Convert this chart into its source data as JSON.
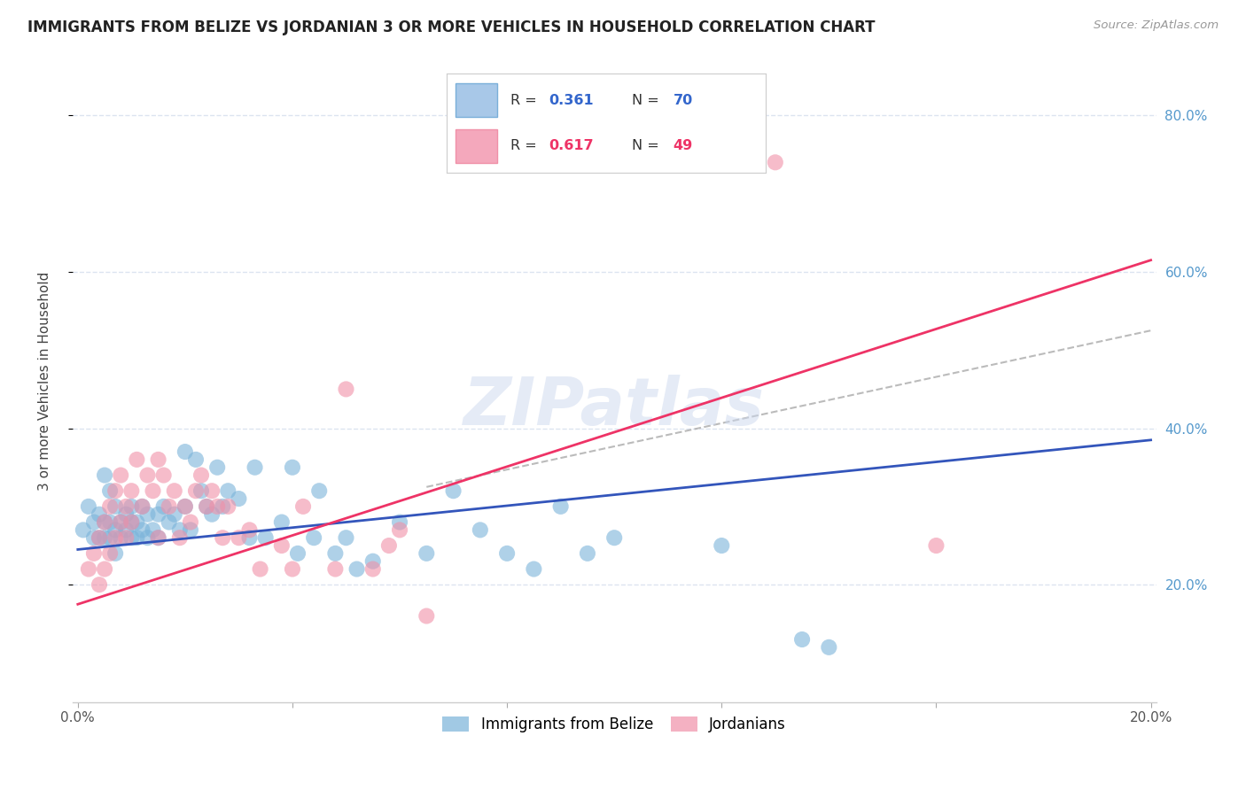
{
  "title": "IMMIGRANTS FROM BELIZE VS JORDANIAN 3 OR MORE VEHICLES IN HOUSEHOLD CORRELATION CHART",
  "source": "Source: ZipAtlas.com",
  "ylabel": "3 or more Vehicles in Household",
  "scatter_blue_color": "#7ab3d9",
  "scatter_pink_color": "#f090a8",
  "line_blue_color": "#3355bb",
  "line_pink_color": "#ee3366",
  "dashed_color": "#aaaaaa",
  "watermark": "ZIPatlas",
  "background_color": "#ffffff",
  "grid_color": "#dce4f0",
  "legend1_patch_color": "#a8c8e8",
  "legend2_patch_color": "#f4a8bc",
  "legend1_R": "0.361",
  "legend1_N": "70",
  "legend2_R": "0.617",
  "legend2_N": "49",
  "R_color_blue": "#3366cc",
  "N_color_blue": "#3366cc",
  "R_color_pink": "#ee3366",
  "N_color_pink": "#ee3366",
  "bottom_legend_blue": "Immigrants from Belize",
  "bottom_legend_pink": "Jordanians",
  "xlim": [
    0.0,
    0.2
  ],
  "ylim": [
    0.05,
    0.85
  ],
  "xtick_positions": [
    0.0,
    0.04,
    0.08,
    0.12,
    0.16,
    0.2
  ],
  "xtick_labels": [
    "0.0%",
    "",
    "",
    "",
    "",
    "20.0%"
  ],
  "ytick_positions": [
    0.2,
    0.4,
    0.6,
    0.8
  ],
  "ytick_labels": [
    "20.0%",
    "40.0%",
    "60.0%",
    "80.0%"
  ],
  "blue_line": {
    "x0": 0.0,
    "y0": 0.245,
    "x1": 0.2,
    "y1": 0.385
  },
  "pink_line": {
    "x0": 0.0,
    "y0": 0.175,
    "x1": 0.2,
    "y1": 0.615
  },
  "dashed_line": {
    "x0": 0.065,
    "y0": 0.325,
    "x1": 0.2,
    "y1": 0.525
  },
  "blue_x": [
    0.001,
    0.002,
    0.003,
    0.003,
    0.004,
    0.004,
    0.005,
    0.005,
    0.005,
    0.006,
    0.006,
    0.006,
    0.007,
    0.007,
    0.007,
    0.008,
    0.008,
    0.009,
    0.009,
    0.01,
    0.01,
    0.01,
    0.011,
    0.011,
    0.012,
    0.012,
    0.013,
    0.013,
    0.014,
    0.015,
    0.015,
    0.016,
    0.017,
    0.018,
    0.019,
    0.02,
    0.02,
    0.021,
    0.022,
    0.023,
    0.024,
    0.025,
    0.026,
    0.027,
    0.028,
    0.03,
    0.032,
    0.033,
    0.035,
    0.038,
    0.04,
    0.041,
    0.044,
    0.045,
    0.048,
    0.05,
    0.052,
    0.055,
    0.06,
    0.065,
    0.07,
    0.075,
    0.08,
    0.085,
    0.09,
    0.095,
    0.1,
    0.12,
    0.135,
    0.14
  ],
  "blue_y": [
    0.27,
    0.3,
    0.26,
    0.28,
    0.29,
    0.26,
    0.34,
    0.28,
    0.26,
    0.32,
    0.28,
    0.26,
    0.3,
    0.27,
    0.24,
    0.28,
    0.26,
    0.29,
    0.27,
    0.3,
    0.28,
    0.26,
    0.28,
    0.26,
    0.3,
    0.27,
    0.29,
    0.26,
    0.27,
    0.29,
    0.26,
    0.3,
    0.28,
    0.29,
    0.27,
    0.37,
    0.3,
    0.27,
    0.36,
    0.32,
    0.3,
    0.29,
    0.35,
    0.3,
    0.32,
    0.31,
    0.26,
    0.35,
    0.26,
    0.28,
    0.35,
    0.24,
    0.26,
    0.32,
    0.24,
    0.26,
    0.22,
    0.23,
    0.28,
    0.24,
    0.32,
    0.27,
    0.24,
    0.22,
    0.3,
    0.24,
    0.26,
    0.25,
    0.13,
    0.12
  ],
  "pink_x": [
    0.002,
    0.003,
    0.004,
    0.004,
    0.005,
    0.005,
    0.006,
    0.006,
    0.007,
    0.007,
    0.008,
    0.008,
    0.009,
    0.009,
    0.01,
    0.01,
    0.011,
    0.012,
    0.013,
    0.014,
    0.015,
    0.015,
    0.016,
    0.017,
    0.018,
    0.019,
    0.02,
    0.021,
    0.022,
    0.023,
    0.024,
    0.025,
    0.026,
    0.027,
    0.028,
    0.03,
    0.032,
    0.034,
    0.038,
    0.04,
    0.042,
    0.048,
    0.05,
    0.055,
    0.058,
    0.06,
    0.065,
    0.13,
    0.16
  ],
  "pink_y": [
    0.22,
    0.24,
    0.26,
    0.2,
    0.28,
    0.22,
    0.3,
    0.24,
    0.32,
    0.26,
    0.34,
    0.28,
    0.3,
    0.26,
    0.28,
    0.32,
    0.36,
    0.3,
    0.34,
    0.32,
    0.36,
    0.26,
    0.34,
    0.3,
    0.32,
    0.26,
    0.3,
    0.28,
    0.32,
    0.34,
    0.3,
    0.32,
    0.3,
    0.26,
    0.3,
    0.26,
    0.27,
    0.22,
    0.25,
    0.22,
    0.3,
    0.22,
    0.45,
    0.22,
    0.25,
    0.27,
    0.16,
    0.74,
    0.25
  ]
}
